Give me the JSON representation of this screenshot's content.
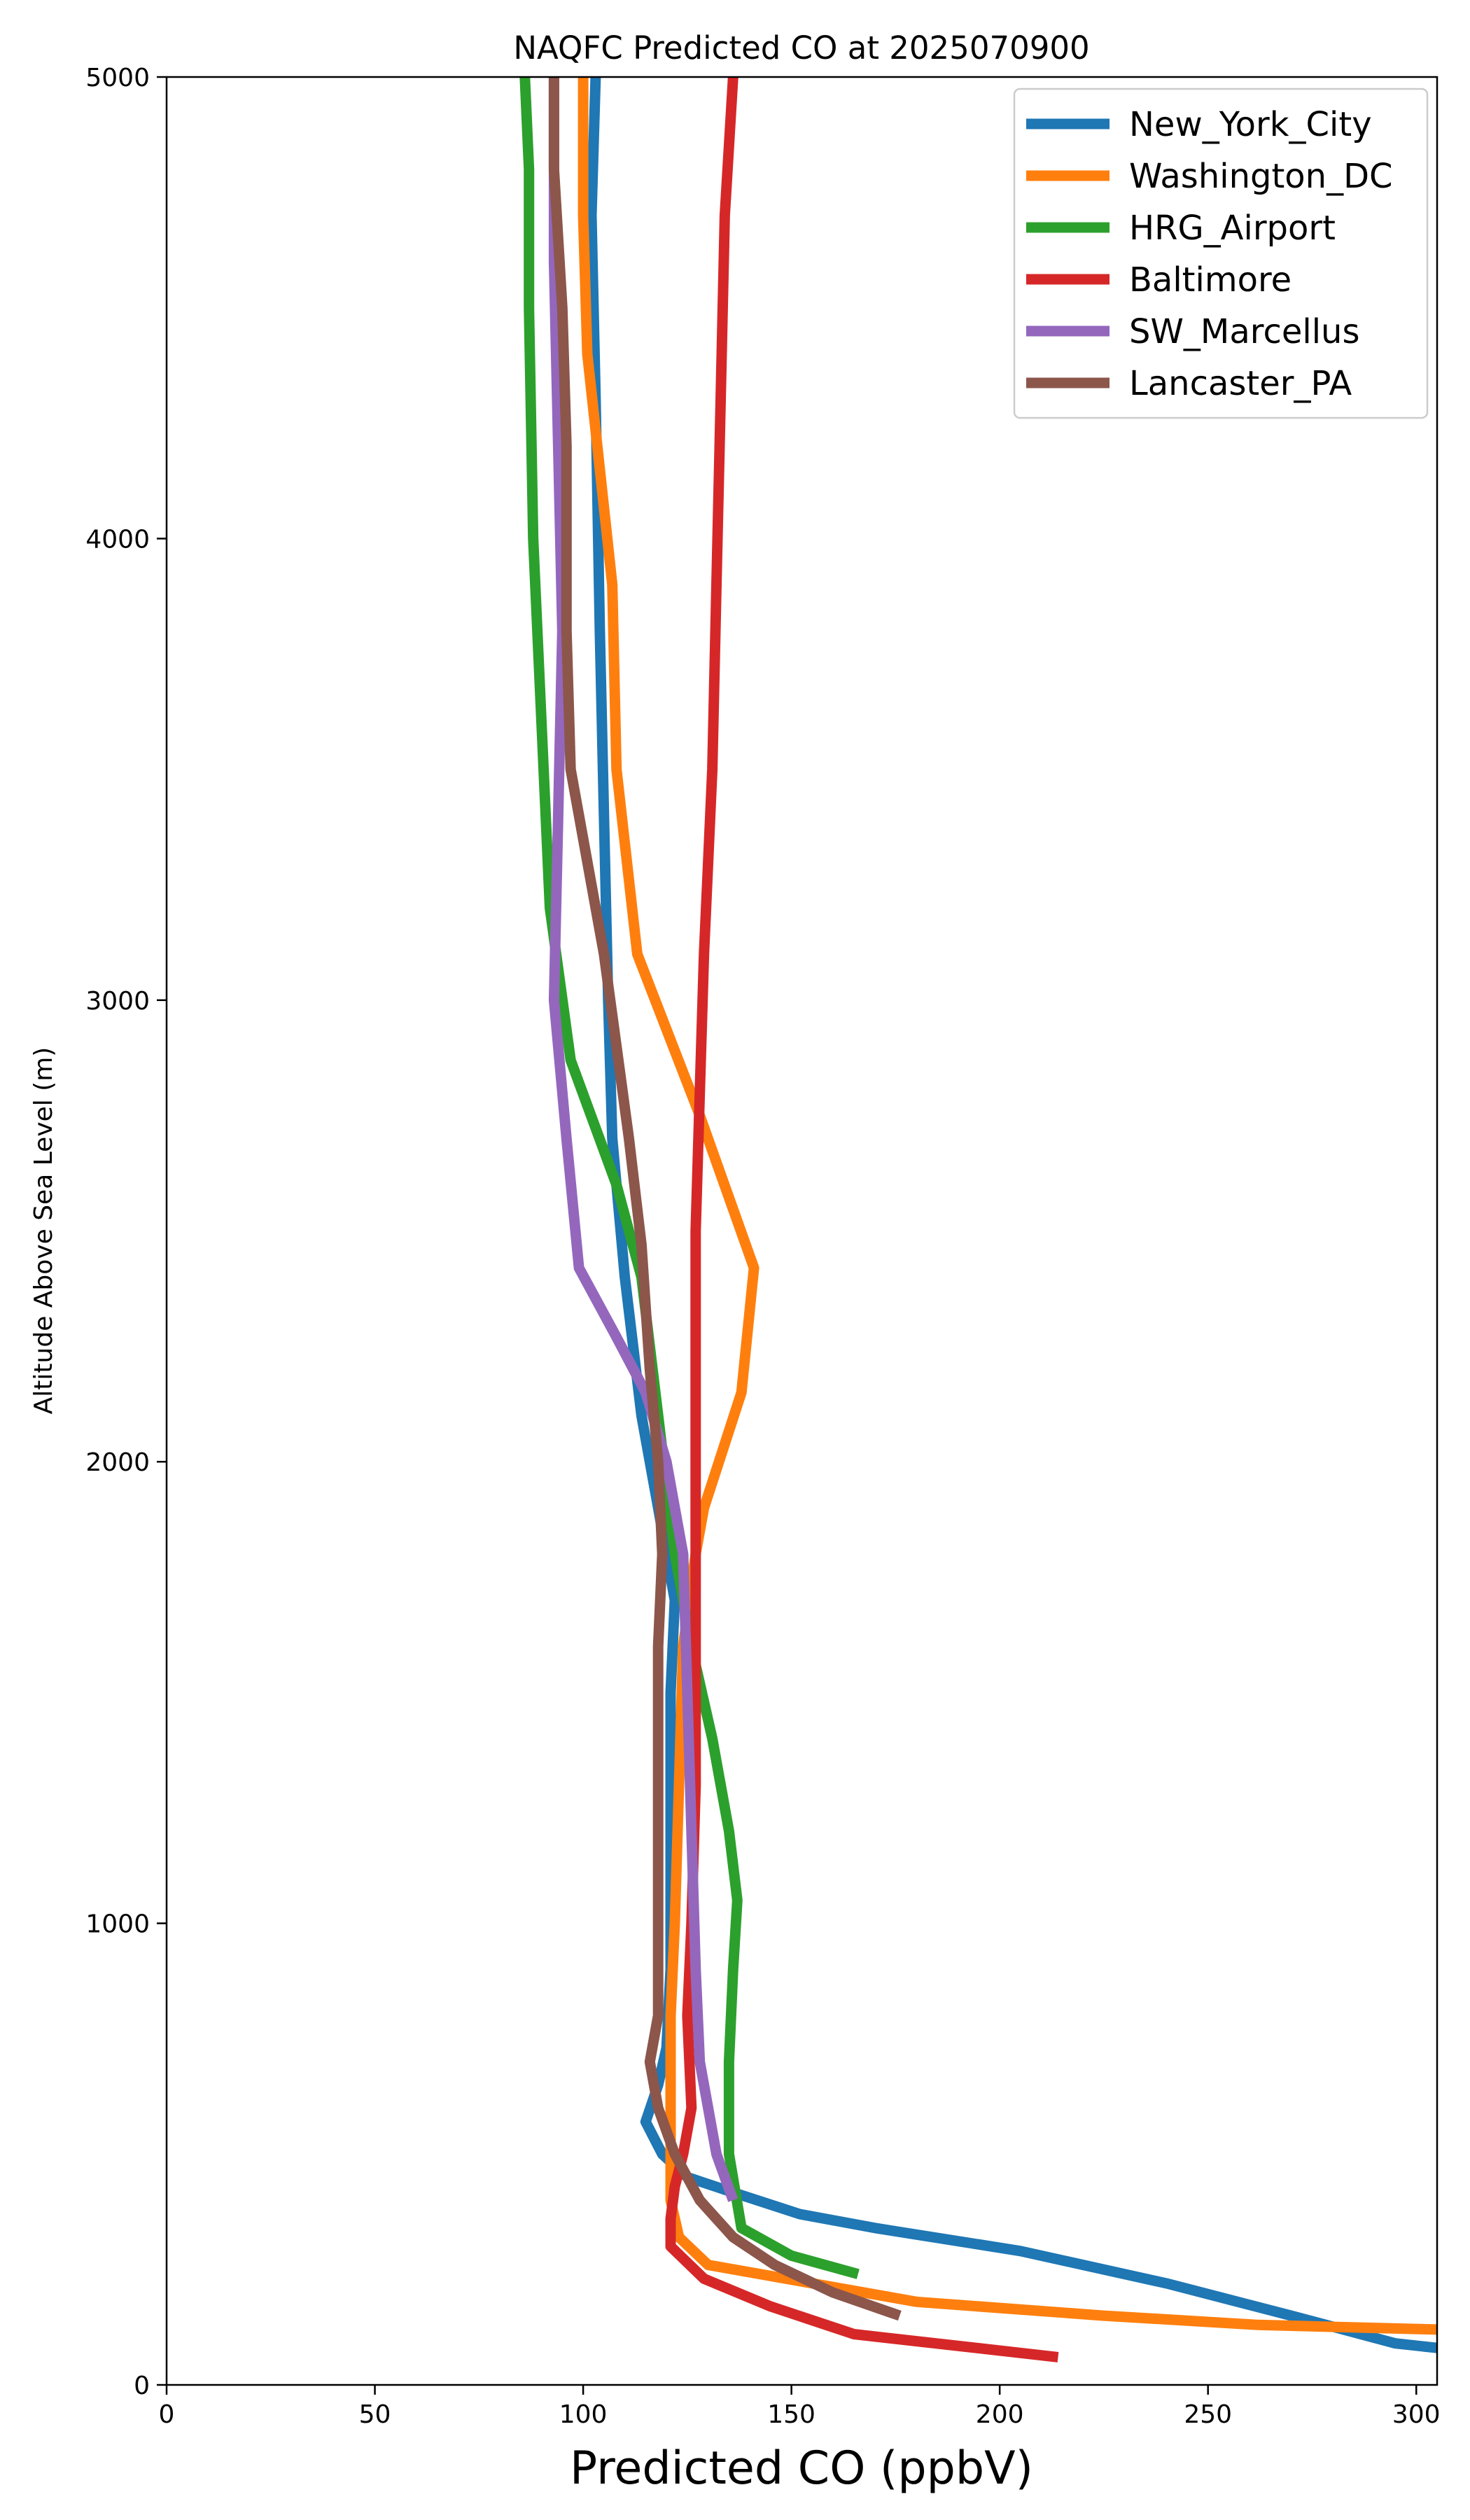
{
  "chart_data": {
    "type": "line",
    "title": "NAQFC Predicted CO at 2025070900",
    "xlabel": "Predicted CO (ppbV)",
    "ylabel": "Altitude Above Sea Level (m)",
    "xlim": [
      0,
      305
    ],
    "ylim": [
      0,
      5000
    ],
    "xticks": [
      0,
      50,
      100,
      150,
      200,
      250,
      300
    ],
    "yticks": [
      0,
      1000,
      2000,
      3000,
      4000,
      5000
    ],
    "grid": false,
    "legend_position": "top-right",
    "series": [
      {
        "name": "New_York_City",
        "color": "#1f77b4",
        "points": [
          [
            305,
            80
          ],
          [
            295,
            90
          ],
          [
            270,
            150
          ],
          [
            240,
            220
          ],
          [
            205,
            290
          ],
          [
            170,
            340
          ],
          [
            152,
            370
          ],
          [
            135,
            420
          ],
          [
            125,
            450
          ],
          [
            119,
            500
          ],
          [
            115,
            570
          ],
          [
            118,
            650
          ],
          [
            120,
            730
          ],
          [
            121,
            900
          ],
          [
            121,
            1200
          ],
          [
            121,
            1500
          ],
          [
            122,
            1700
          ],
          [
            118,
            1900
          ],
          [
            114,
            2100
          ],
          [
            110,
            2400
          ],
          [
            107,
            2700
          ],
          [
            106,
            3000
          ],
          [
            105,
            3400
          ],
          [
            104,
            3800
          ],
          [
            103,
            4300
          ],
          [
            102,
            4700
          ],
          [
            103,
            5000
          ]
        ]
      },
      {
        "name": "Washington_DC",
        "color": "#ff7f0e",
        "points": [
          [
            305,
            120
          ],
          [
            262,
            130
          ],
          [
            225,
            150
          ],
          [
            180,
            180
          ],
          [
            130,
            260
          ],
          [
            123,
            320
          ],
          [
            121,
            400
          ],
          [
            121,
            600
          ],
          [
            121,
            800
          ],
          [
            122,
            1000
          ],
          [
            123,
            1300
          ],
          [
            124,
            1600
          ],
          [
            127,
            1800
          ],
          [
            129,
            1900
          ],
          [
            138,
            2150
          ],
          [
            141,
            2420
          ],
          [
            128,
            2750
          ],
          [
            113,
            3100
          ],
          [
            108,
            3500
          ],
          [
            107,
            3900
          ],
          [
            104,
            4150
          ],
          [
            101,
            4400
          ],
          [
            100,
            4700
          ],
          [
            100,
            5000
          ]
        ]
      },
      {
        "name": "HRG_Airport",
        "color": "#2ca02c",
        "points": [
          [
            166,
            240
          ],
          [
            150,
            280
          ],
          [
            138,
            340
          ],
          [
            135,
            500
          ],
          [
            135,
            700
          ],
          [
            136,
            900
          ],
          [
            137,
            1050
          ],
          [
            135,
            1200
          ],
          [
            131,
            1400
          ],
          [
            126,
            1600
          ],
          [
            122,
            1800
          ],
          [
            118,
            2100
          ],
          [
            114,
            2400
          ],
          [
            108,
            2600
          ],
          [
            97,
            2870
          ],
          [
            92,
            3200
          ],
          [
            90,
            3600
          ],
          [
            88,
            4000
          ],
          [
            87,
            4500
          ],
          [
            87,
            4800
          ],
          [
            86,
            5000
          ]
        ]
      },
      {
        "name": "Baltimore",
        "color": "#d62728",
        "points": [
          [
            214,
            60
          ],
          [
            165,
            110
          ],
          [
            145,
            170
          ],
          [
            129,
            230
          ],
          [
            121,
            300
          ],
          [
            121,
            360
          ],
          [
            122,
            430
          ],
          [
            124,
            500
          ],
          [
            126,
            600
          ],
          [
            125,
            800
          ],
          [
            126,
            1000
          ],
          [
            127,
            1300
          ],
          [
            127,
            1600
          ],
          [
            127,
            1900
          ],
          [
            127,
            2200
          ],
          [
            127,
            2500
          ],
          [
            128,
            2800
          ],
          [
            129,
            3100
          ],
          [
            131,
            3500
          ],
          [
            132,
            3900
          ],
          [
            133,
            4300
          ],
          [
            134,
            4700
          ],
          [
            136,
            5000
          ]
        ]
      },
      {
        "name": "SW_Marcellus",
        "color": "#9467bd",
        "points": [
          [
            136,
            400
          ],
          [
            132,
            500
          ],
          [
            128,
            700
          ],
          [
            127,
            900
          ],
          [
            126,
            1200
          ],
          [
            125,
            1500
          ],
          [
            124,
            1800
          ],
          [
            120,
            2000
          ],
          [
            115,
            2150
          ],
          [
            108,
            2270
          ],
          [
            99,
            2420
          ],
          [
            96,
            2700
          ],
          [
            93,
            3000
          ],
          [
            94,
            3400
          ],
          [
            95,
            3800
          ],
          [
            94,
            4200
          ],
          [
            93,
            4600
          ],
          [
            93,
            5000
          ]
        ]
      },
      {
        "name": "Lancaster_PA",
        "color": "#8c564b",
        "points": [
          [
            176,
            150
          ],
          [
            160,
            200
          ],
          [
            146,
            260
          ],
          [
            136,
            320
          ],
          [
            128,
            400
          ],
          [
            122,
            500
          ],
          [
            118,
            600
          ],
          [
            116,
            700
          ],
          [
            118,
            800
          ],
          [
            118,
            1000
          ],
          [
            118,
            1300
          ],
          [
            118,
            1600
          ],
          [
            119,
            1800
          ],
          [
            118,
            2000
          ],
          [
            116,
            2200
          ],
          [
            114,
            2470
          ],
          [
            111,
            2700
          ],
          [
            108,
            2900
          ],
          [
            105,
            3100
          ],
          [
            101,
            3300
          ],
          [
            97,
            3500
          ],
          [
            96,
            3800
          ],
          [
            96,
            4200
          ],
          [
            95,
            4500
          ],
          [
            93,
            4800
          ],
          [
            93,
            5000
          ]
        ]
      }
    ]
  }
}
